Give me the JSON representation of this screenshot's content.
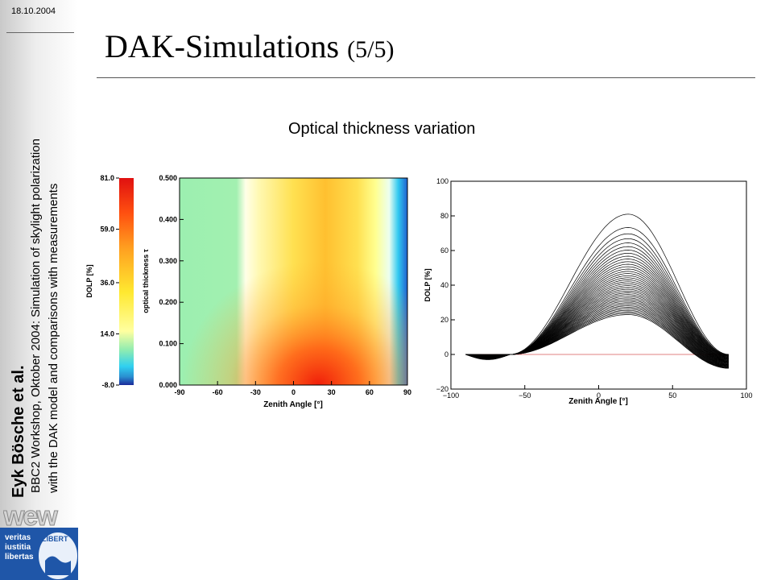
{
  "header": {
    "date": "18.10.2004",
    "title_main": "DAK-Simulations",
    "title_page": "(5/5)",
    "subtitle": "Optical thickness variation"
  },
  "sidebar": {
    "author": "Eyk Bösche et al.",
    "line1": "BBC2 Workshop, Oktober 2004: Simulation of skylight polarization",
    "line2": "with the DAK model and comparisons with measurements",
    "logo_text": "wew",
    "motto": [
      "veritas",
      "iustitia",
      "libertas"
    ],
    "seal_text": "LIBERT"
  },
  "chart_data": [
    {
      "type": "heatmap",
      "xlabel": "Zenith Angle [°]",
      "ylabel": "optical thickness τ",
      "xlim": [
        -90,
        90
      ],
      "ylim": [
        0,
        0.5
      ],
      "xticks": [
        "-90",
        "-60",
        "-30",
        "0",
        "30",
        "60",
        "90"
      ],
      "yticks": [
        "0.000",
        "0.100",
        "0.200",
        "0.300",
        "0.400",
        "0.500"
      ],
      "colorbar": {
        "label": "DOLP [%]",
        "min": -8.0,
        "max": 81.0,
        "ticks": [
          "81.0",
          "59.0",
          "36.0",
          "14.0",
          "-8.0"
        ]
      }
    },
    {
      "type": "line",
      "xlabel": "Zenith Angle [°]",
      "ylabel": "DOLP [%]",
      "xlim": [
        -100,
        100
      ],
      "ylim": [
        -20,
        100
      ],
      "xticks": [
        "−100",
        "−50",
        "0",
        "50",
        "100"
      ],
      "yticks": [
        "100",
        "80",
        "60",
        "40",
        "20",
        "0",
        "−20"
      ],
      "x_range": [
        -90,
        88
      ],
      "neutral_x": -60,
      "peak_x": 20,
      "peak_min": 23,
      "peak_max": 81,
      "right_end_min": -8,
      "right_end_max": 0,
      "reference_line": 0,
      "reference_color": "#e08080",
      "series_count": 40,
      "series_color": "#000000"
    }
  ]
}
